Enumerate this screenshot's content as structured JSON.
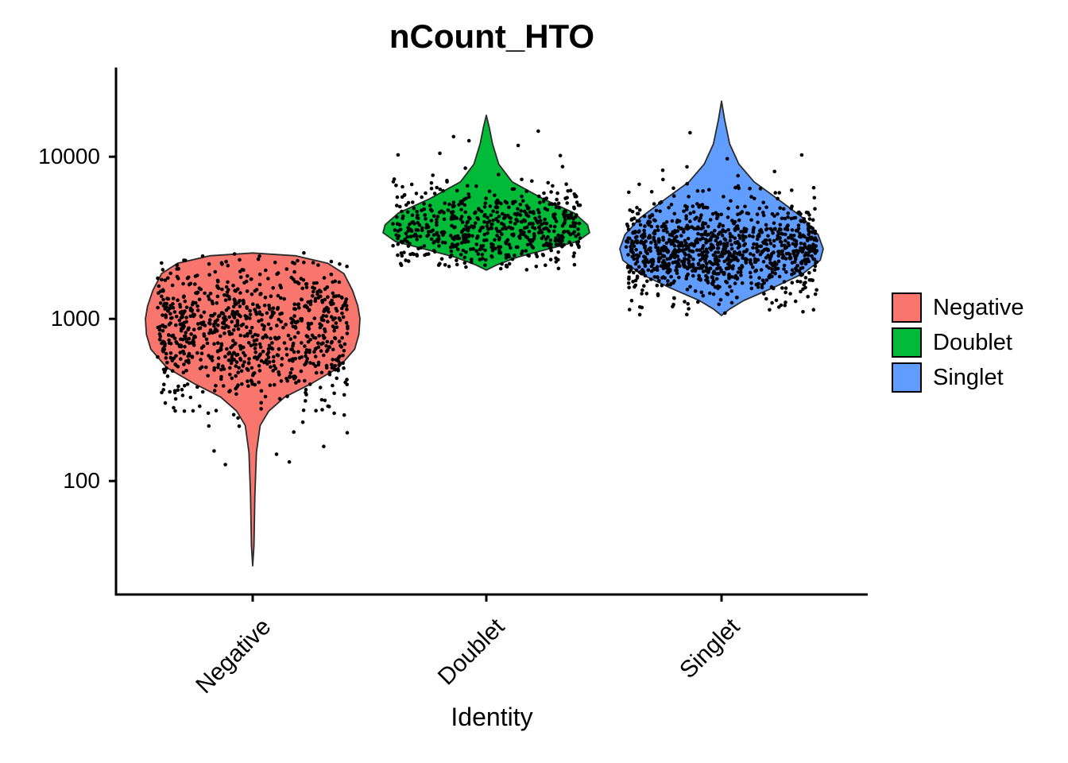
{
  "title": "nCount_HTO",
  "xlabel": "Identity",
  "chart_data": {
    "type": "violin",
    "title": "nCount_HTO",
    "xlabel": "Identity",
    "ylabel": "",
    "yscale": "log10",
    "y_ticks": [
      100,
      1000,
      10000
    ],
    "y_domain_log10": [
      1.3,
      4.55
    ],
    "grid": false,
    "legend_position": "right",
    "categories": [
      "Negative",
      "Doublet",
      "Singlet"
    ],
    "series": [
      {
        "name": "Negative",
        "color": "#F8766D",
        "n_points": 880,
        "log10_mean": 2.92,
        "log10_sd": 0.21,
        "outlier_frac": 0.06,
        "outlier_sd_mult": 2.2,
        "log10_min": 1.45,
        "log10_max": 3.41,
        "violin_profile": [
          [
            2550,
            0.0
          ],
          [
            2450,
            0.4
          ],
          [
            2200,
            0.7
          ],
          [
            1900,
            0.85
          ],
          [
            1500,
            0.93
          ],
          [
            1200,
            0.98
          ],
          [
            1000,
            1.0
          ],
          [
            800,
            0.99
          ],
          [
            650,
            0.95
          ],
          [
            500,
            0.8
          ],
          [
            400,
            0.55
          ],
          [
            330,
            0.3
          ],
          [
            270,
            0.15
          ],
          [
            220,
            0.07
          ],
          [
            150,
            0.035
          ],
          [
            80,
            0.02
          ],
          [
            40,
            0.012
          ],
          [
            30,
            0.0
          ]
        ]
      },
      {
        "name": "Doublet",
        "color": "#00BA38",
        "n_points": 620,
        "log10_mean": 3.555,
        "log10_sd": 0.135,
        "outlier_frac": 0.07,
        "outlier_sd_mult": 2.2,
        "log10_min": 3.3,
        "log10_max": 4.26,
        "violin_profile": [
          [
            18000,
            0.0
          ],
          [
            15000,
            0.03
          ],
          [
            12000,
            0.06
          ],
          [
            9000,
            0.12
          ],
          [
            7000,
            0.25
          ],
          [
            5500,
            0.55
          ],
          [
            4500,
            0.85
          ],
          [
            3800,
            0.98
          ],
          [
            3400,
            1.0
          ],
          [
            3000,
            0.88
          ],
          [
            2700,
            0.6
          ],
          [
            2400,
            0.3
          ],
          [
            2150,
            0.1
          ],
          [
            2000,
            0.0
          ]
        ]
      },
      {
        "name": "Singlet",
        "color": "#619CFF",
        "n_points": 1100,
        "log10_mean": 3.42,
        "log10_sd": 0.135,
        "outlier_frac": 0.08,
        "outlier_sd_mult": 2.3,
        "log10_min": 3.02,
        "log10_max": 4.35,
        "violin_profile": [
          [
            22000,
            0.0
          ],
          [
            17000,
            0.03
          ],
          [
            12000,
            0.08
          ],
          [
            9000,
            0.17
          ],
          [
            7000,
            0.32
          ],
          [
            5500,
            0.55
          ],
          [
            4200,
            0.8
          ],
          [
            3300,
            0.95
          ],
          [
            2700,
            1.0
          ],
          [
            2300,
            0.97
          ],
          [
            1900,
            0.8
          ],
          [
            1550,
            0.5
          ],
          [
            1300,
            0.22
          ],
          [
            1150,
            0.08
          ],
          [
            1050,
            0.0
          ]
        ]
      }
    ],
    "legend": [
      "Negative",
      "Doublet",
      "Singlet"
    ]
  }
}
